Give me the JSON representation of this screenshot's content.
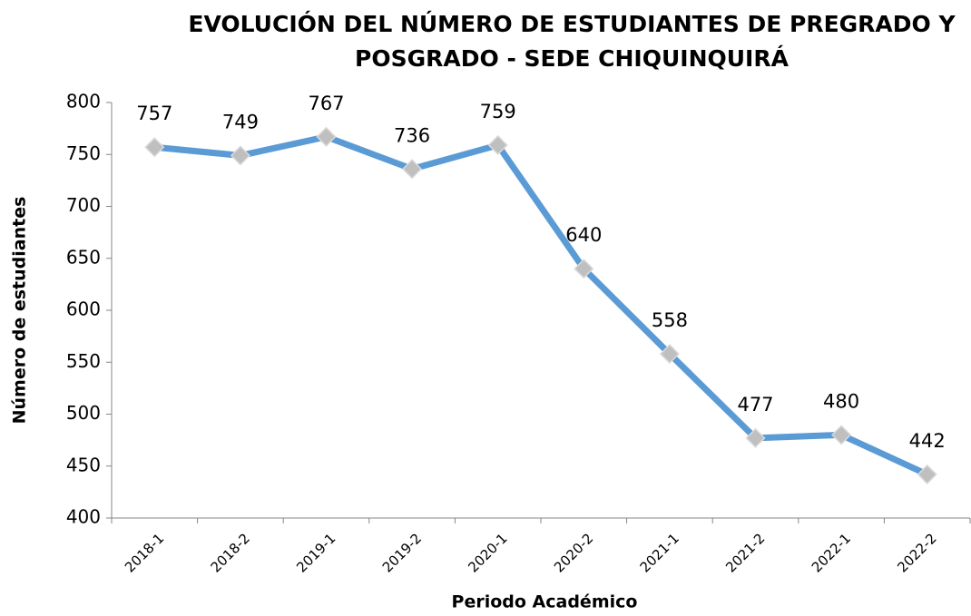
{
  "chart_data": {
    "type": "line",
    "title": [
      "EVOLUCIÓN DEL NÚMERO DE ESTUDIANTES DE PREGRADO Y",
      "POSGRADO - SEDE CHIQUINQUIRÁ"
    ],
    "x_label": "Periodo Académico",
    "y_label": "Número de estudiantes",
    "categories": [
      "2018-1",
      "2018-2",
      "2019-1",
      "2019-2",
      "2020-1",
      "2020-2",
      "2021-1",
      "2021-2",
      "2022-1",
      "2022-2"
    ],
    "values": [
      757,
      749,
      767,
      736,
      759,
      640,
      558,
      477,
      480,
      442
    ],
    "color": "#5b9bd5",
    "marker_color": "#bfbfbf",
    "ylim": [
      400,
      800
    ],
    "yticks": [
      400,
      450,
      500,
      550,
      600,
      650,
      700,
      750,
      800
    ],
    "grid": false
  }
}
